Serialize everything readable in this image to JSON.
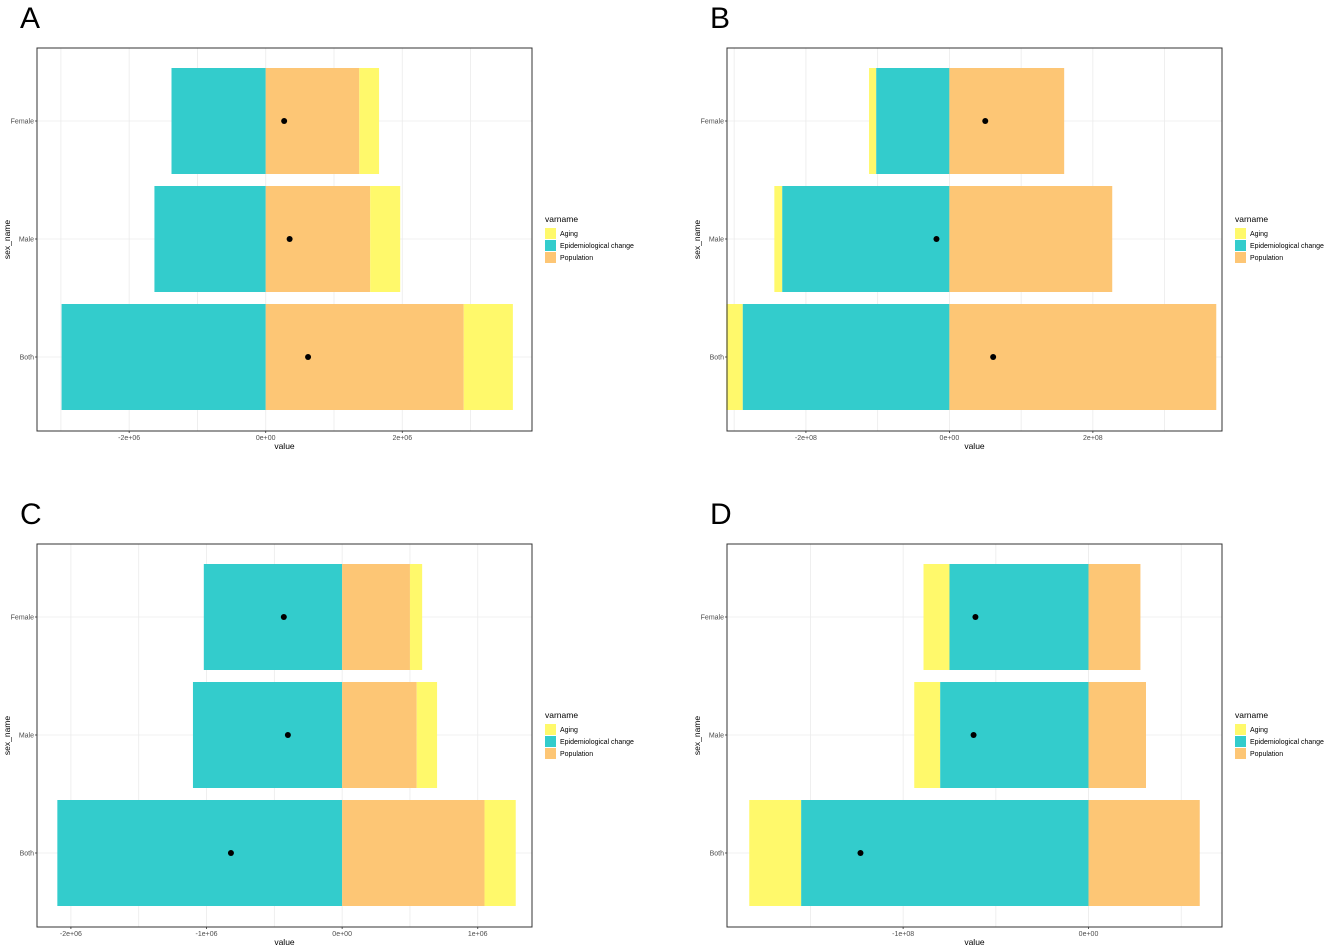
{
  "colors": {
    "aging": "#fff96b",
    "epidemiological": "#33cccc",
    "population": "#fdc675",
    "point": "#000000",
    "grid": "#ebebeb",
    "frame": "#333333"
  },
  "chart_data": [
    {
      "panel": "A",
      "type": "bar",
      "orientation": "horizontal-stacked",
      "xlabel": "value",
      "ylabel": "sex_name",
      "categories": [
        "Female",
        "Male",
        "Both"
      ],
      "xlim": [
        -3350000.0,
        3900000.0
      ],
      "xticks": [
        -2000000.0,
        0,
        2000000.0
      ],
      "xtick_labels": [
        "-2e+06",
        "0e+00",
        "2e+06"
      ],
      "legend_title": "varname",
      "legend_position": "right",
      "legend": [
        "Aging",
        "Epidemiological change",
        "Population"
      ],
      "bars": [
        {
          "category": "Female",
          "segments": [
            {
              "name": "Epidemiological change",
              "start": -1380000.0,
              "end": 0
            },
            {
              "name": "Population",
              "start": 0,
              "end": 1370000.0
            },
            {
              "name": "Aging",
              "start": 1370000.0,
              "end": 1660000.0
            }
          ],
          "total": 270000.0
        },
        {
          "category": "Male",
          "segments": [
            {
              "name": "Epidemiological change",
              "start": -1630000.0,
              "end": 0
            },
            {
              "name": "Population",
              "start": 0,
              "end": 1530000.0
            },
            {
              "name": "Aging",
              "start": 1530000.0,
              "end": 1970000.0
            }
          ],
          "total": 350000.0
        },
        {
          "category": "Both",
          "segments": [
            {
              "name": "Epidemiological change",
              "start": -2990000.0,
              "end": 0
            },
            {
              "name": "Population",
              "start": 0,
              "end": 2900000.0
            },
            {
              "name": "Aging",
              "start": 2900000.0,
              "end": 3620000.0
            }
          ],
          "total": 620000.0
        }
      ]
    },
    {
      "panel": "B",
      "type": "bar",
      "orientation": "horizontal-stacked",
      "xlabel": "value",
      "ylabel": "sex_name",
      "categories": [
        "Female",
        "Male",
        "Both"
      ],
      "xlim": [
        -310000000.0,
        380000000.0
      ],
      "xticks": [
        -200000000.0,
        0,
        200000000.0
      ],
      "xtick_labels": [
        "-2e+08",
        "0e+00",
        "2e+08"
      ],
      "legend_title": "varname",
      "legend_position": "right",
      "legend": [
        "Aging",
        "Epidemiological change",
        "Population"
      ],
      "bars": [
        {
          "category": "Female",
          "segments": [
            {
              "name": "Aging",
              "start": -112000000.0,
              "end": -102000000.0
            },
            {
              "name": "Epidemiological change",
              "start": -102000000.0,
              "end": 0
            },
            {
              "name": "Population",
              "start": 0,
              "end": 160000000.0
            }
          ],
          "total": 50000000.0
        },
        {
          "category": "Male",
          "segments": [
            {
              "name": "Aging",
              "start": -244000000.0,
              "end": -233000000.0
            },
            {
              "name": "Epidemiological change",
              "start": -233000000.0,
              "end": 0
            },
            {
              "name": "Population",
              "start": 0,
              "end": 227000000.0
            }
          ],
          "total": -18000000.0
        },
        {
          "category": "Both",
          "segments": [
            {
              "name": "Aging",
              "start": -311000000.0,
              "end": -288000000.0
            },
            {
              "name": "Epidemiological change",
              "start": -288000000.0,
              "end": 0
            },
            {
              "name": "Population",
              "start": 0,
              "end": 372000000.0
            }
          ],
          "total": 61000000.0
        }
      ]
    },
    {
      "panel": "C",
      "type": "bar",
      "orientation": "horizontal-stacked",
      "xlabel": "value",
      "ylabel": "sex_name",
      "categories": [
        "Female",
        "Male",
        "Both"
      ],
      "xlim": [
        -2250000.0,
        1400000.0
      ],
      "xticks": [
        -2000000.0,
        -1000000.0,
        0,
        1000000.0
      ],
      "xtick_labels": [
        "-2e+06",
        "-1e+06",
        "0e+00",
        "1e+06"
      ],
      "legend_title": "varname",
      "legend_position": "right",
      "legend": [
        "Aging",
        "Epidemiological change",
        "Population"
      ],
      "bars": [
        {
          "category": "Female",
          "segments": [
            {
              "name": "Epidemiological change",
              "start": -1020000.0,
              "end": 0
            },
            {
              "name": "Population",
              "start": 0,
              "end": 500000.0
            },
            {
              "name": "Aging",
              "start": 500000.0,
              "end": 590000.0
            }
          ],
          "total": -430000.0
        },
        {
          "category": "Male",
          "segments": [
            {
              "name": "Epidemiological change",
              "start": -1100000.0,
              "end": 0
            },
            {
              "name": "Population",
              "start": 0,
              "end": 550000.0
            },
            {
              "name": "Aging",
              "start": 550000.0,
              "end": 700000.0
            }
          ],
          "total": -400000.0
        },
        {
          "category": "Both",
          "segments": [
            {
              "name": "Epidemiological change",
              "start": -2100000.0,
              "end": 0
            },
            {
              "name": "Population",
              "start": 0,
              "end": 1050000.0
            },
            {
              "name": "Aging",
              "start": 1050000.0,
              "end": 1280000.0
            }
          ],
          "total": -820000.0
        }
      ]
    },
    {
      "panel": "D",
      "type": "bar",
      "orientation": "horizontal-stacked",
      "xlabel": "value",
      "ylabel": "sex_name",
      "categories": [
        "Female",
        "Male",
        "Both"
      ],
      "xlim": [
        -195000000.0,
        72000000.0
      ],
      "xticks": [
        -100000000.0,
        0
      ],
      "xtick_labels": [
        "-1e+08",
        "0e+00"
      ],
      "legend_title": "varname",
      "legend_position": "right",
      "legend": [
        "Aging",
        "Epidemiological change",
        "Population"
      ],
      "bars": [
        {
          "category": "Female",
          "segments": [
            {
              "name": "Aging",
              "start": -89000000.0,
              "end": -75000000.0
            },
            {
              "name": "Epidemiological change",
              "start": -75000000.0,
              "end": 0
            },
            {
              "name": "Population",
              "start": 0,
              "end": 28000000.0
            }
          ],
          "total": -61000000.0
        },
        {
          "category": "Male",
          "segments": [
            {
              "name": "Aging",
              "start": -94000000.0,
              "end": -80000000.0
            },
            {
              "name": "Epidemiological change",
              "start": -80000000.0,
              "end": 0
            },
            {
              "name": "Population",
              "start": 0,
              "end": 31000000.0
            }
          ],
          "total": -62000000.0
        },
        {
          "category": "Both",
          "segments": [
            {
              "name": "Aging",
              "start": -183000000.0,
              "end": -155000000.0
            },
            {
              "name": "Epidemiological change",
              "start": -155000000.0,
              "end": 0
            },
            {
              "name": "Population",
              "start": 0,
              "end": 60000000.0
            }
          ],
          "total": -123000000.0
        }
      ]
    }
  ]
}
